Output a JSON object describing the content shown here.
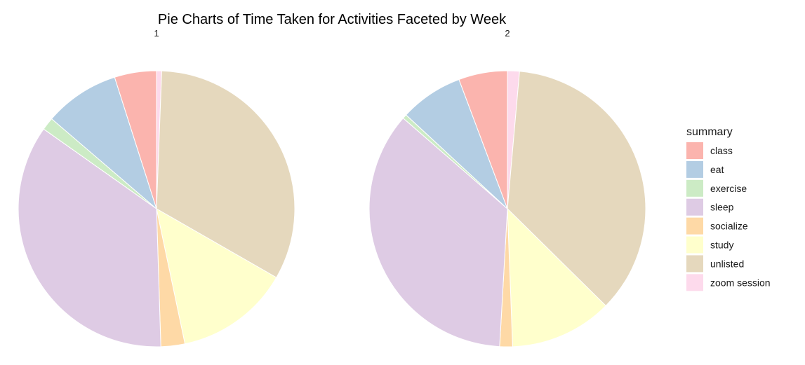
{
  "chart_data": {
    "type": "pie",
    "title": "Pie Charts of Time Taken for Activities Faceted by Week",
    "legend": {
      "title": "summary",
      "placement": "right",
      "entries": [
        {
          "name": "class",
          "color": "#FBB4AE"
        },
        {
          "name": "eat",
          "color": "#B3CDE3"
        },
        {
          "name": "exercise",
          "color": "#CCEBC5"
        },
        {
          "name": "sleep",
          "color": "#DECBE4"
        },
        {
          "name": "socialize",
          "color": "#FED9A6"
        },
        {
          "name": "study",
          "color": "#FFFFCC"
        },
        {
          "name": "unlisted",
          "color": "#E5D8BD"
        },
        {
          "name": "zoom session",
          "color": "#FDDAEC"
        }
      ]
    },
    "facets": [
      {
        "label": "1",
        "slices": [
          {
            "name": "zoom session",
            "value": 0.6
          },
          {
            "name": "unlisted",
            "value": 32.7
          },
          {
            "name": "study",
            "value": 13.4
          },
          {
            "name": "socialize",
            "value": 2.8
          },
          {
            "name": "sleep",
            "value": 35.3
          },
          {
            "name": "exercise",
            "value": 1.5
          },
          {
            "name": "eat",
            "value": 8.8
          },
          {
            "name": "class",
            "value": 4.9
          }
        ]
      },
      {
        "label": "2",
        "slices": [
          {
            "name": "zoom session",
            "value": 1.4
          },
          {
            "name": "unlisted",
            "value": 36.0
          },
          {
            "name": "study",
            "value": 12.0
          },
          {
            "name": "socialize",
            "value": 1.5
          },
          {
            "name": "sleep",
            "value": 35.5
          },
          {
            "name": "exercise",
            "value": 0.5
          },
          {
            "name": "eat",
            "value": 7.4
          },
          {
            "name": "class",
            "value": 5.7
          }
        ]
      }
    ]
  }
}
